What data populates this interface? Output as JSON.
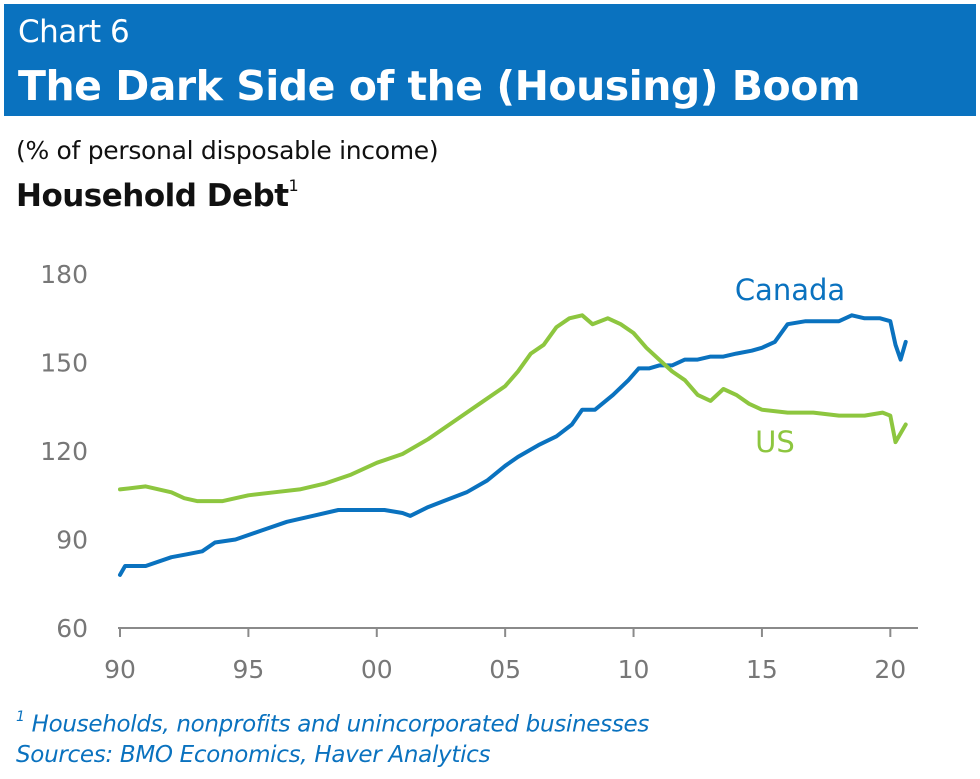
{
  "header": {
    "chart_label": "Chart 6",
    "title": "The Dark Side of the (Housing) Boom"
  },
  "units": "(% of personal disposable income)",
  "subtitle": {
    "text": "Household Debt",
    "footnote_mark": "1"
  },
  "footnote": {
    "mark": "1",
    "text": "Households, nonprofits and unincorporated businesses",
    "sources": "Sources: BMO Economics, Haver Analytics"
  },
  "colors": {
    "brand_blue": "#0a72bf",
    "canada_line": "#0a72bf",
    "us_line": "#8dc63f",
    "axis_gray": "#8a8a8a"
  },
  "chart_data": {
    "type": "line",
    "title": "Household Debt",
    "ylabel": "(% of personal disposable income)",
    "xlabel": "",
    "ylim": [
      60,
      180
    ],
    "xlim": [
      1990,
      2021
    ],
    "yticks": [
      60,
      90,
      120,
      150,
      180
    ],
    "xticks": [
      1990,
      1995,
      2000,
      2005,
      2010,
      2015,
      2020
    ],
    "xtick_labels": [
      "90",
      "95",
      "00",
      "05",
      "10",
      "15",
      "20"
    ],
    "grid": false,
    "legend": "direct labels",
    "series": [
      {
        "name": "Canada",
        "color": "#0a72bf",
        "x": [
          1990.0,
          1990.2,
          1991.0,
          1992.0,
          1992.6,
          1993.2,
          1993.7,
          1994.5,
          1995.5,
          1996.5,
          1997.5,
          1998.5,
          1999.5,
          2000.3,
          2001.0,
          2001.3,
          2002.0,
          2002.6,
          2003.5,
          2004.3,
          2005.0,
          2005.5,
          2006.3,
          2007.0,
          2007.6,
          2008.0,
          2008.5,
          2009.2,
          2009.8,
          2010.2,
          2010.6,
          2011.0,
          2011.5,
          2012.0,
          2012.5,
          2013.0,
          2013.5,
          2014.0,
          2014.6,
          2015.0,
          2015.5,
          2016.0,
          2016.7,
          2017.3,
          2018.0,
          2018.5,
          2019.0,
          2019.6,
          2020.0,
          2020.2,
          2020.4,
          2020.6
        ],
        "values": [
          78,
          81,
          81,
          84,
          85,
          86,
          89,
          90,
          93,
          96,
          98,
          100,
          100,
          100,
          99,
          98,
          101,
          103,
          106,
          110,
          115,
          118,
          122,
          125,
          129,
          134,
          134,
          139,
          144,
          148,
          148,
          149,
          149,
          151,
          151,
          152,
          152,
          153,
          154,
          155,
          157,
          163,
          164,
          164,
          164,
          166,
          165,
          165,
          164,
          156,
          151,
          157
        ]
      },
      {
        "name": "US",
        "color": "#8dc63f",
        "x": [
          1990.0,
          1991.0,
          1992.0,
          1992.5,
          1993.0,
          1994.0,
          1995.0,
          1996.0,
          1997.0,
          1998.0,
          1999.0,
          2000.0,
          2001.0,
          2002.0,
          2003.0,
          2004.0,
          2005.0,
          2005.5,
          2006.0,
          2006.5,
          2007.0,
          2007.5,
          2008.0,
          2008.4,
          2009.0,
          2009.5,
          2010.0,
          2010.5,
          2011.0,
          2011.5,
          2012.0,
          2012.5,
          2013.0,
          2013.5,
          2014.0,
          2014.5,
          2015.0,
          2016.0,
          2017.0,
          2018.0,
          2019.0,
          2019.7,
          2020.0,
          2020.2,
          2020.6
        ],
        "values": [
          107,
          108,
          106,
          104,
          103,
          103,
          105,
          106,
          107,
          109,
          112,
          116,
          119,
          124,
          130,
          136,
          142,
          147,
          153,
          156,
          162,
          165,
          166,
          163,
          165,
          163,
          160,
          155,
          151,
          147,
          144,
          139,
          137,
          141,
          139,
          136,
          134,
          133,
          133,
          132,
          132,
          133,
          132,
          123,
          129
        ]
      }
    ]
  }
}
